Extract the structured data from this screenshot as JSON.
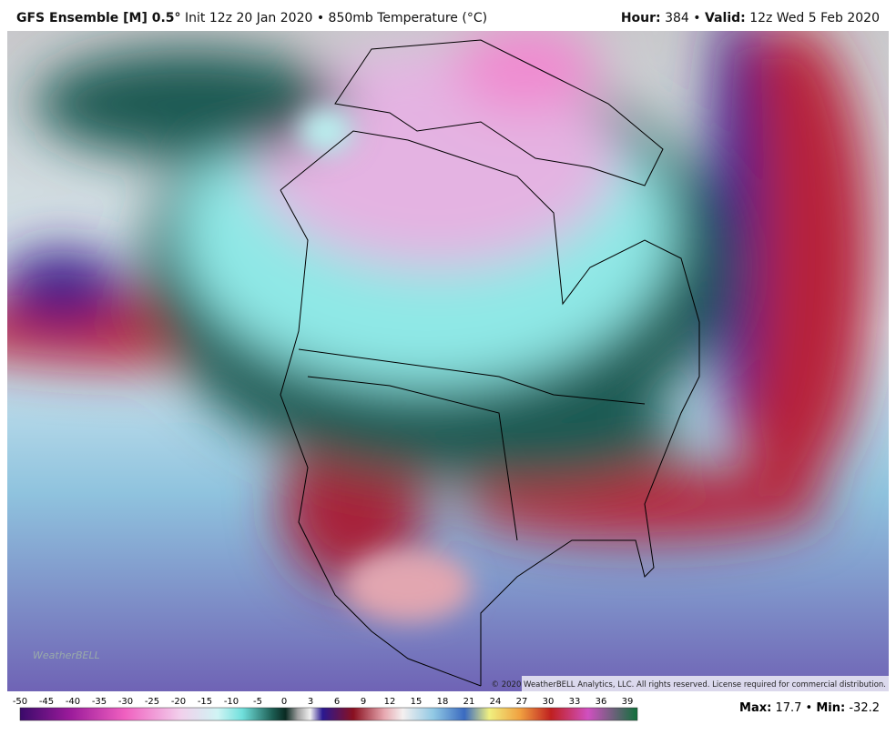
{
  "header": {
    "title": "GFS Ensemble [M] 0.5°",
    "subtitle": "Init 12z 20 Jan 2020 • 850mb Temperature (°C)",
    "hour_label": "Hour:",
    "hour": "384",
    "separator": "•",
    "valid_label": "Valid:",
    "valid": "12z Wed 5 Feb 2020"
  },
  "map": {
    "logo": "WeatherBELL",
    "copyright": "© 2020 WeatherBELL Analytics, LLC. All rights reserved. License required for commercial distribution."
  },
  "colorbar": {
    "ticks": [
      -50,
      -45,
      -40,
      -35,
      -30,
      -25,
      -20,
      -15,
      -10,
      -5,
      0,
      3,
      6,
      9,
      12,
      15,
      18,
      21,
      24,
      27,
      30,
      33,
      36,
      39
    ]
  },
  "stats": {
    "max_label": "Max:",
    "max": 17.7,
    "min_label": "Min:",
    "min": -32.2
  }
}
